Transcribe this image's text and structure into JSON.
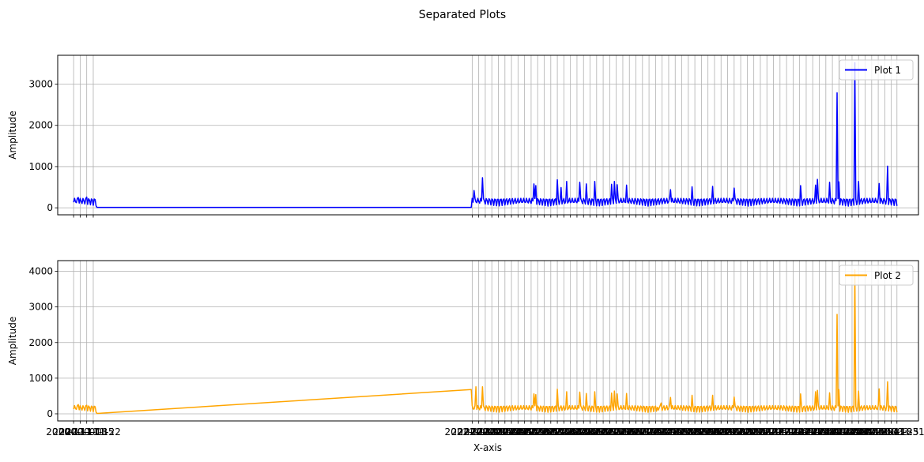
{
  "chart_data": {
    "type": "line",
    "title": "Separated Plots",
    "xlabel": "X-axis",
    "x_start_label": "2020-11-01",
    "x_end_label": "2023-03-31",
    "grid": true,
    "x_tick_labels_overlap": true,
    "x_ticks_note": "monthly ticks: Nov 2020 – Jan 2021, then Jan 2022 – Mar 2023, approx. 4 grid lines per month",
    "gap": {
      "from": "2021-01-01",
      "to": "2021-12-31"
    },
    "subplots": [
      {
        "name": "Plot 1",
        "ylabel": "Amplitude",
        "color": "#0000ff",
        "ylim": [
          -170,
          3700
        ],
        "yticks": [
          0,
          1000,
          2000,
          3000
        ],
        "legend_position": "upper right",
        "baseline_low": 40,
        "baseline_high": 230,
        "gap_value": 10,
        "spikes": [
          {
            "x": "2020-11-06",
            "y": 250
          },
          {
            "x": "2020-11-15",
            "y": 260
          },
          {
            "x": "2022-01-03",
            "y": 420
          },
          {
            "x": "2022-01-12",
            "y": 730
          },
          {
            "x": "2022-03-08",
            "y": 580
          },
          {
            "x": "2022-03-10",
            "y": 540
          },
          {
            "x": "2022-04-02",
            "y": 680
          },
          {
            "x": "2022-04-06",
            "y": 490
          },
          {
            "x": "2022-04-12",
            "y": 640
          },
          {
            "x": "2022-04-26",
            "y": 620
          },
          {
            "x": "2022-05-03",
            "y": 580
          },
          {
            "x": "2022-05-12",
            "y": 640
          },
          {
            "x": "2022-05-30",
            "y": 570
          },
          {
            "x": "2022-06-02",
            "y": 640
          },
          {
            "x": "2022-06-05",
            "y": 560
          },
          {
            "x": "2022-06-15",
            "y": 550
          },
          {
            "x": "2022-08-01",
            "y": 440
          },
          {
            "x": "2022-08-24",
            "y": 510
          },
          {
            "x": "2022-09-15",
            "y": 520
          },
          {
            "x": "2022-10-08",
            "y": 480
          },
          {
            "x": "2022-12-18",
            "y": 540
          },
          {
            "x": "2023-01-03",
            "y": 550
          },
          {
            "x": "2023-01-05",
            "y": 690
          },
          {
            "x": "2023-01-18",
            "y": 620
          },
          {
            "x": "2023-01-26",
            "y": 2790
          },
          {
            "x": "2023-01-28",
            "y": 630
          },
          {
            "x": "2023-02-14",
            "y": 3520
          },
          {
            "x": "2023-02-18",
            "y": 640
          },
          {
            "x": "2023-03-12",
            "y": 590
          },
          {
            "x": "2023-03-21",
            "y": 1010
          }
        ]
      },
      {
        "name": "Plot 2",
        "ylabel": "Amplitude",
        "color": "#ffa500",
        "ylim": [
          -200,
          4300
        ],
        "yticks": [
          0,
          1000,
          2000,
          3000,
          4000
        ],
        "legend_position": "upper right",
        "baseline_low": 40,
        "baseline_high": 230,
        "gap_value": 10,
        "gap_end_value": 680,
        "second_gap": {
          "from": "2022-07-18",
          "to": "2022-07-23",
          "end_value": 370
        },
        "spikes": [
          {
            "x": "2020-11-06",
            "y": 260
          },
          {
            "x": "2020-11-15",
            "y": 240
          },
          {
            "x": "2022-01-05",
            "y": 760
          },
          {
            "x": "2022-01-12",
            "y": 760
          },
          {
            "x": "2022-03-08",
            "y": 560
          },
          {
            "x": "2022-03-10",
            "y": 540
          },
          {
            "x": "2022-04-02",
            "y": 690
          },
          {
            "x": "2022-04-12",
            "y": 620
          },
          {
            "x": "2022-04-26",
            "y": 610
          },
          {
            "x": "2022-05-03",
            "y": 570
          },
          {
            "x": "2022-05-12",
            "y": 620
          },
          {
            "x": "2022-05-30",
            "y": 580
          },
          {
            "x": "2022-06-02",
            "y": 640
          },
          {
            "x": "2022-06-05",
            "y": 560
          },
          {
            "x": "2022-06-15",
            "y": 570
          },
          {
            "x": "2022-08-01",
            "y": 460
          },
          {
            "x": "2022-08-24",
            "y": 520
          },
          {
            "x": "2022-09-15",
            "y": 520
          },
          {
            "x": "2022-10-08",
            "y": 470
          },
          {
            "x": "2022-12-18",
            "y": 560
          },
          {
            "x": "2023-01-03",
            "y": 620
          },
          {
            "x": "2023-01-05",
            "y": 660
          },
          {
            "x": "2023-01-18",
            "y": 590
          },
          {
            "x": "2023-01-26",
            "y": 2790
          },
          {
            "x": "2023-01-28",
            "y": 680
          },
          {
            "x": "2023-02-14",
            "y": 4040
          },
          {
            "x": "2023-02-18",
            "y": 640
          },
          {
            "x": "2023-03-12",
            "y": 700
          },
          {
            "x": "2023-03-21",
            "y": 900
          }
        ]
      }
    ]
  }
}
